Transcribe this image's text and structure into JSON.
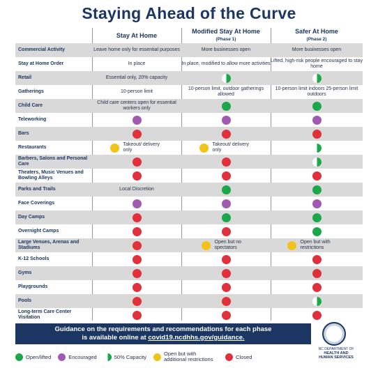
{
  "title": "Staying Ahead of the Curve",
  "columns": [
    {
      "name": "Stay At Home",
      "sub": ""
    },
    {
      "name": "Modified Stay At Home",
      "sub": "(Phase 1)"
    },
    {
      "name": "Safer At Home",
      "sub": "(Phase 2)"
    }
  ],
  "rows": [
    {
      "label": "Commercial Activity",
      "c1": "Leave home only for essential purposes",
      "c2": "More businesses open",
      "c3": "More businesses open"
    },
    {
      "label": "Stay at Home Order",
      "c1": "In place",
      "c2": "In place, modified to allow more activities",
      "c3": "Lifted, high-risk people encouraged to stay home"
    },
    {
      "label": "Retail",
      "c1": "Essential only, 20% capacity",
      "c2": "",
      "c3": ""
    },
    {
      "label": "Gatherings",
      "c1": "10-person limit",
      "c2": "10-person limit, outdoor gatherings allowed",
      "c3": "10-person limit indoors 25-person limit outdoors"
    },
    {
      "label": "Child Care",
      "c1": "Child care centers open for essential workers only",
      "c2": "",
      "c3": ""
    },
    {
      "label": "Teleworking",
      "c1": "",
      "c2": "",
      "c3": ""
    },
    {
      "label": "Bars",
      "c1": "",
      "c2": "",
      "c3": ""
    },
    {
      "label": "Restaurants",
      "c1": "Takeout/ delivery only",
      "c2": "Takeout/ delivery only",
      "c3": ""
    },
    {
      "label": "Barbers, Salons and Personal Care",
      "c1": "",
      "c2": "",
      "c3": ""
    },
    {
      "label": "Theaters, Music Venues and Bowling Alleys",
      "c1": "",
      "c2": "",
      "c3": ""
    },
    {
      "label": "Parks and Trails",
      "c1": "Local Discretion",
      "c2": "",
      "c3": ""
    },
    {
      "label": "Face Coverings",
      "c1": "",
      "c2": "",
      "c3": ""
    },
    {
      "label": "Day Camps",
      "c1": "",
      "c2": "",
      "c3": ""
    },
    {
      "label": "Overnight Camps",
      "c1": "",
      "c2": "",
      "c3": ""
    },
    {
      "label": "Large Venues, Arenas and Stadiums",
      "c1": "",
      "c2": "Open but no spectators",
      "c3": "Open but with restrictions"
    },
    {
      "label": "K-12 Schools",
      "c1": "",
      "c2": "",
      "c3": ""
    },
    {
      "label": "Gyms",
      "c1": "",
      "c2": "",
      "c3": ""
    },
    {
      "label": "Playgrounds",
      "c1": "",
      "c2": "",
      "c3": ""
    },
    {
      "label": "Pools",
      "c1": "",
      "c2": "",
      "c3": ""
    },
    {
      "label": "Long-term Care Center Visitation",
      "c1": "",
      "c2": "",
      "c3": ""
    }
  ],
  "banner": {
    "line1": "Guidance on the requirements and recommendations for each phase",
    "line2_prefix": "is available online at ",
    "line2_url": "covid19.ncdhhs.gov/guidance."
  },
  "department": {
    "line1": "NC DEPARTMENT OF",
    "line2": "HEALTH AND",
    "line3": "HUMAN SERVICES"
  },
  "legend": [
    {
      "label": "Open/lifted",
      "icon": "green-dot"
    },
    {
      "label": "Encouraged",
      "icon": "purple-dot"
    },
    {
      "label": "50% Capacity",
      "icon": "half-green-dot"
    },
    {
      "label": "Open but with additional restrictions",
      "icon": "yellow-dot"
    },
    {
      "label": "Closed",
      "icon": "red-dot"
    }
  ],
  "colors": {
    "navy": "#1c3663",
    "green": "#1ca84a",
    "red": "#e0303a",
    "purple": "#a05ab1",
    "yellow": "#f2c21b",
    "shade": "#d9d9d9"
  }
}
